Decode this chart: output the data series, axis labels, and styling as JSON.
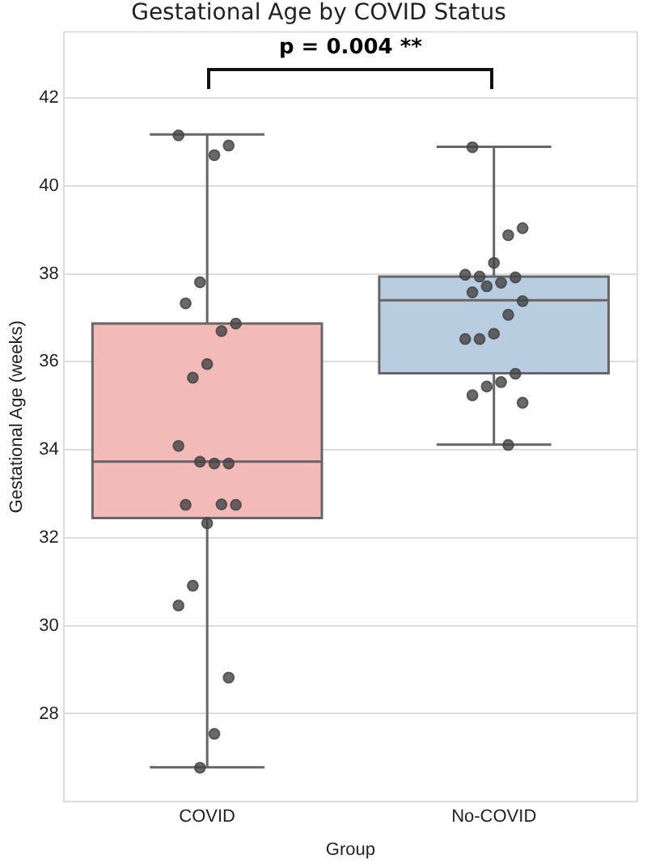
{
  "chart_data": {
    "type": "box",
    "title": "Gestational Age by COVID Status",
    "xlabel": "Group",
    "ylabel": "Gestational Age (weeks)",
    "categories": [
      "COVID",
      "No-COVID"
    ],
    "colors": [
      "#f2bbb8",
      "#b8cde0"
    ],
    "boxes": [
      {
        "low": 26.78,
        "q1": 32.45,
        "median": 33.73,
        "q3": 36.87,
        "high": 41.17
      },
      {
        "low": 34.12,
        "q1": 35.74,
        "median": 37.4,
        "q3": 37.94,
        "high": 40.89
      }
    ],
    "series": [
      {
        "type": "scatter",
        "color": "#444444",
        "x": [
          "COVID",
          "COVID",
          "COVID",
          "COVID",
          "COVID",
          "COVID",
          "COVID",
          "COVID",
          "COVID",
          "COVID",
          "COVID",
          "COVID",
          "COVID",
          "COVID",
          "COVID",
          "COVID",
          "COVID",
          "COVID",
          "COVID",
          "COVID",
          "COVID",
          "COVID",
          "No-COVID",
          "No-COVID",
          "No-COVID",
          "No-COVID",
          "No-COVID",
          "No-COVID",
          "No-COVID",
          "No-COVID",
          "No-COVID",
          "No-COVID",
          "No-COVID",
          "No-COVID",
          "No-COVID",
          "No-COVID",
          "No-COVID",
          "No-COVID",
          "No-COVID",
          "No-COVID",
          "No-COVID",
          "No-COVID",
          "No-COVID"
        ],
        "values": [
          41.15,
          40.92,
          40.7,
          37.81,
          37.33,
          36.87,
          36.7,
          35.95,
          35.64,
          34.09,
          33.69,
          33.69,
          33.73,
          32.75,
          32.75,
          32.76,
          32.33,
          30.91,
          30.46,
          28.82,
          27.54,
          26.77,
          40.88,
          39.04,
          38.88,
          38.25,
          37.94,
          37.98,
          37.92,
          37.8,
          37.72,
          37.58,
          37.38,
          37.07,
          36.64,
          36.52,
          36.52,
          35.73,
          35.54,
          35.44,
          35.24,
          35.07,
          34.11
        ]
      }
    ],
    "ylim": [
      26,
      43.5
    ],
    "yticks": [
      28,
      30,
      32,
      34,
      36,
      38,
      40,
      42
    ],
    "grid": "y",
    "legend": false,
    "marker": "circle",
    "annotations": [
      "p = 0.004 **"
    ]
  }
}
